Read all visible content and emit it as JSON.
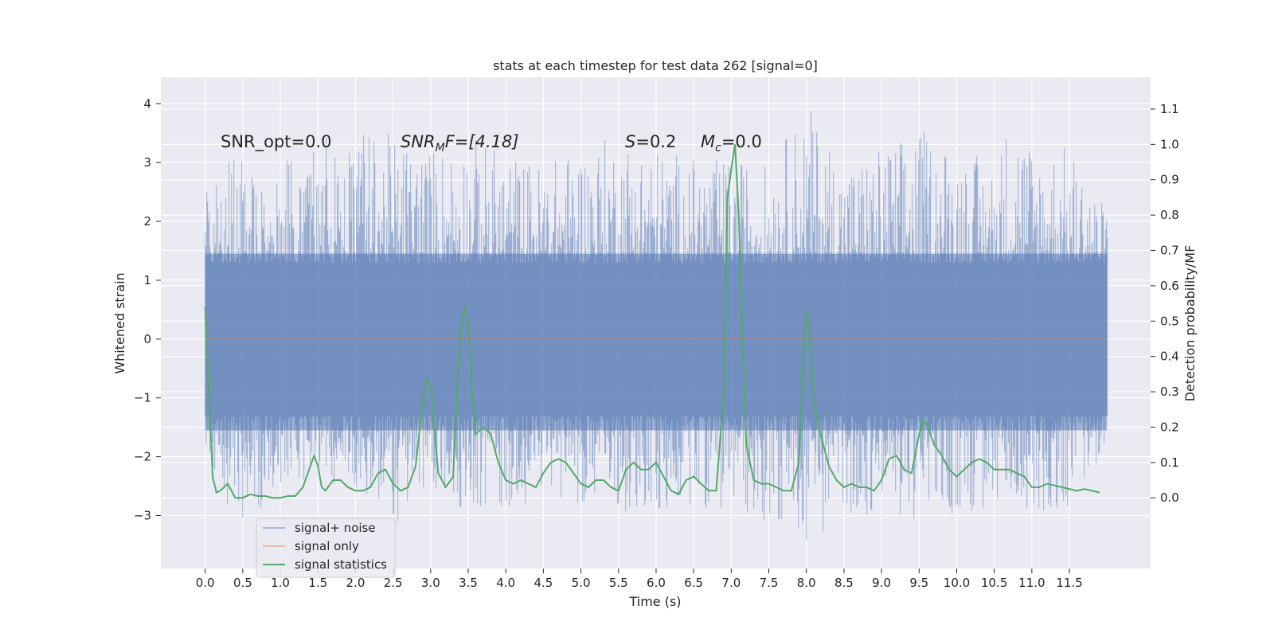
{
  "chart_data": {
    "type": "line",
    "title": "stats at each timestep for test data 262 [signal=0]",
    "xlabel": "Time (s)",
    "ylabel": "Whitened strain",
    "y2label": "Detection probability/MF",
    "xlim": [
      -0.59,
      12.58
    ],
    "ylim": [
      -3.9,
      4.45
    ],
    "y2lim": [
      -0.2,
      1.19
    ],
    "x_ticks": [
      "0.0",
      "0.5",
      "1.0",
      "1.5",
      "2.0",
      "2.5",
      "3.0",
      "3.5",
      "4.0",
      "4.5",
      "5.0",
      "5.5",
      "6.0",
      "6.5",
      "7.0",
      "7.5",
      "8.0",
      "8.5",
      "9.0",
      "9.5",
      "10.0",
      "10.5",
      "11.0",
      "11.5"
    ],
    "y_ticks": [
      "4",
      "3",
      "2",
      "1",
      "0",
      "−1",
      "−2",
      "−3"
    ],
    "y2_ticks": [
      "1.1",
      "1.0",
      "0.9",
      "0.8",
      "0.7",
      "0.6",
      "0.5",
      "0.4",
      "0.3",
      "0.2",
      "0.1",
      "0.0"
    ],
    "grid": true,
    "legend_position": "lower-left",
    "annotations": {
      "snr_opt": "SNR_opt=0.0",
      "snr_mf_base": "SNR",
      "snr_mf_sub": "M",
      "snr_mf_rest": "F=[4.18]",
      "s_var": "S",
      "s_rest": "=0.2",
      "mc_var": "M",
      "mc_sub": "c",
      "mc_rest": "=0.0"
    },
    "series": [
      {
        "name": "signal+ noise",
        "color": "#4c72b0",
        "x_range": [
          0.0,
          12.0
        ],
        "envelope_points": [
          [
            0.0,
            2.7,
            -2.3
          ],
          [
            0.5,
            3.3,
            -3.25
          ],
          [
            1.0,
            3.0,
            -2.5
          ],
          [
            1.5,
            3.6,
            -2.4
          ],
          [
            2.0,
            3.55,
            -2.6
          ],
          [
            2.5,
            3.5,
            -3.2
          ],
          [
            3.0,
            3.3,
            -2.7
          ],
          [
            3.5,
            3.5,
            -2.9
          ],
          [
            4.0,
            3.2,
            -3.0
          ],
          [
            4.5,
            3.0,
            -2.6
          ],
          [
            5.0,
            3.3,
            -2.8
          ],
          [
            5.5,
            3.5,
            -2.9
          ],
          [
            6.0,
            3.3,
            -3.2
          ],
          [
            6.5,
            3.1,
            -2.8
          ],
          [
            7.0,
            3.05,
            -3.0
          ],
          [
            7.5,
            3.0,
            -3.1
          ],
          [
            8.0,
            4.05,
            -3.5
          ],
          [
            8.5,
            3.0,
            -3.05
          ],
          [
            9.0,
            3.3,
            -3.0
          ],
          [
            9.5,
            3.6,
            -3.1
          ],
          [
            10.0,
            3.3,
            -3.05
          ],
          [
            10.5,
            3.0,
            -3.0
          ],
          [
            10.75,
            4.1,
            -2.6
          ],
          [
            11.0,
            3.4,
            -3.0
          ],
          [
            11.5,
            3.3,
            -2.9
          ],
          [
            12.0,
            2.2,
            -1.8
          ]
        ]
      },
      {
        "name": "signal only",
        "color": "#dd8452",
        "x": [
          0.0,
          12.0
        ],
        "y": [
          0.0,
          0.0
        ]
      },
      {
        "name": "signal statistics",
        "color": "#55a868",
        "x": [
          0.0,
          0.05,
          0.1,
          0.15,
          0.2,
          0.3,
          0.4,
          0.5,
          0.6,
          0.7,
          0.8,
          0.9,
          1.0,
          1.1,
          1.2,
          1.3,
          1.4,
          1.45,
          1.5,
          1.55,
          1.6,
          1.7,
          1.8,
          1.9,
          2.0,
          2.1,
          2.2,
          2.3,
          2.4,
          2.5,
          2.6,
          2.7,
          2.8,
          2.9,
          2.95,
          3.0,
          3.05,
          3.1,
          3.2,
          3.3,
          3.35,
          3.4,
          3.45,
          3.5,
          3.55,
          3.6,
          3.7,
          3.8,
          3.9,
          4.0,
          4.1,
          4.2,
          4.3,
          4.4,
          4.5,
          4.6,
          4.7,
          4.8,
          4.9,
          5.0,
          5.1,
          5.2,
          5.3,
          5.4,
          5.5,
          5.6,
          5.7,
          5.8,
          5.9,
          6.0,
          6.1,
          6.2,
          6.3,
          6.4,
          6.5,
          6.6,
          6.7,
          6.8,
          6.9,
          6.95,
          7.0,
          7.05,
          7.1,
          7.15,
          7.2,
          7.3,
          7.4,
          7.5,
          7.6,
          7.7,
          7.8,
          7.9,
          7.95,
          8.0,
          8.05,
          8.1,
          8.2,
          8.3,
          8.4,
          8.5,
          8.6,
          8.7,
          8.8,
          8.9,
          9.0,
          9.1,
          9.2,
          9.3,
          9.4,
          9.5,
          9.55,
          9.6,
          9.7,
          9.8,
          9.9,
          10.0,
          10.1,
          10.2,
          10.3,
          10.4,
          10.5,
          10.6,
          10.7,
          10.8,
          10.9,
          11.0,
          11.1,
          11.2,
          11.3,
          11.4,
          11.5,
          11.6,
          11.7,
          11.8,
          11.9
        ],
        "y": [
          0.54,
          0.3,
          0.06,
          0.015,
          0.02,
          0.04,
          0.0,
          0.0,
          0.01,
          0.005,
          0.005,
          0.0,
          0.0,
          0.005,
          0.005,
          0.03,
          0.09,
          0.12,
          0.09,
          0.03,
          0.02,
          0.05,
          0.05,
          0.03,
          0.02,
          0.02,
          0.03,
          0.07,
          0.08,
          0.04,
          0.02,
          0.03,
          0.09,
          0.28,
          0.33,
          0.32,
          0.2,
          0.07,
          0.03,
          0.06,
          0.3,
          0.48,
          0.54,
          0.5,
          0.3,
          0.18,
          0.2,
          0.18,
          0.1,
          0.05,
          0.04,
          0.05,
          0.04,
          0.03,
          0.07,
          0.1,
          0.11,
          0.1,
          0.07,
          0.04,
          0.03,
          0.05,
          0.05,
          0.03,
          0.02,
          0.08,
          0.1,
          0.08,
          0.08,
          0.1,
          0.06,
          0.02,
          0.01,
          0.05,
          0.06,
          0.04,
          0.02,
          0.02,
          0.3,
          0.85,
          0.93,
          1.0,
          0.8,
          0.45,
          0.15,
          0.05,
          0.04,
          0.04,
          0.03,
          0.02,
          0.02,
          0.1,
          0.35,
          0.53,
          0.45,
          0.27,
          0.17,
          0.09,
          0.05,
          0.03,
          0.04,
          0.03,
          0.03,
          0.02,
          0.05,
          0.11,
          0.12,
          0.08,
          0.07,
          0.18,
          0.22,
          0.21,
          0.15,
          0.12,
          0.08,
          0.06,
          0.08,
          0.1,
          0.11,
          0.1,
          0.08,
          0.08,
          0.08,
          0.07,
          0.06,
          0.03,
          0.03,
          0.04,
          0.035,
          0.03,
          0.025,
          0.02,
          0.025,
          0.02,
          0.015
        ]
      }
    ]
  }
}
